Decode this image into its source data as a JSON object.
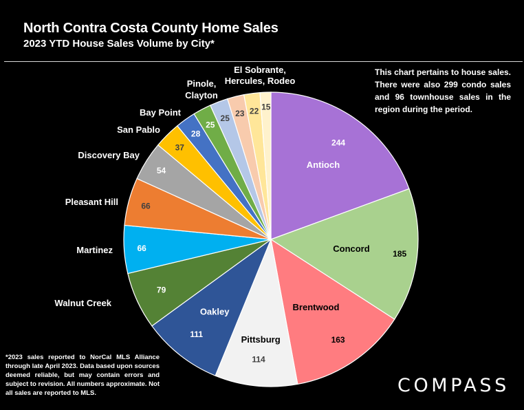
{
  "header": {
    "title": "North Contra Costa County Home Sales",
    "subtitle": "2023 YTD House Sales Volume by City*"
  },
  "note": "This chart pertains to house sales. There were also 299 condo sales and 96 townhouse sales in the region during the period.",
  "footnote": "*2023 sales reported to NorCal MLS Alliance through late April 2023. Data based upon sources deemed reliable, but may contain errors and subject to revision. All numbers approximate. Not all sales are reported to MLS.",
  "logo": "COMPASS",
  "chart_data": {
    "type": "pie",
    "title": "2023 YTD House Sales Volume by City*",
    "start_angle": "12 o'clock",
    "direction": "clockwise",
    "slices": [
      {
        "label": "Antioch",
        "value": 244,
        "color": "#a772d6",
        "label_color": "#ffffff",
        "value_color": "#ffffff"
      },
      {
        "label": "Concord",
        "value": 185,
        "color": "#a9d18e",
        "label_color": "#000000",
        "value_color": "#000000"
      },
      {
        "label": "Brentwood",
        "value": 163,
        "color": "#ff7c80",
        "label_color": "#000000",
        "value_color": "#000000"
      },
      {
        "label": "Pittsburg",
        "value": 114,
        "color": "#f2f2f2",
        "label_color": "#000000",
        "value_color": "#404040"
      },
      {
        "label": "Oakley",
        "value": 111,
        "color": "#2f5597",
        "label_color": "#ffffff",
        "value_color": "#ffffff"
      },
      {
        "label": "Walnut Creek",
        "value": 79,
        "color": "#548235",
        "label_color": "#ffffff",
        "value_color": "#ffffff"
      },
      {
        "label": "Martinez",
        "value": 66,
        "color": "#00b0f0",
        "label_color": "#ffffff",
        "value_color": "#ffffff"
      },
      {
        "label": "Pleasant Hill",
        "value": 66,
        "color": "#ed7d31",
        "label_color": "#ffffff",
        "value_color": "#404040"
      },
      {
        "label": "Discovery Bay",
        "value": 54,
        "color": "#a5a5a5",
        "label_color": "#ffffff",
        "value_color": "#ffffff"
      },
      {
        "label": "San Pablo",
        "value": 37,
        "color": "#ffc000",
        "label_color": "#ffffff",
        "value_color": "#404040"
      },
      {
        "label": "Bay Point",
        "value": 28,
        "color": "#4472c4",
        "label_color": "#ffffff",
        "value_color": "#ffffff"
      },
      {
        "label": "Pinole, Clayton",
        "value": 25,
        "color": "#70ad47",
        "label_color": "#ffffff",
        "value_color": "#ffffff"
      },
      {
        "label": "",
        "value": 25,
        "color": "#b4c7e7",
        "label_color": "#ffffff",
        "value_color": "#404040"
      },
      {
        "label": "El Sobrante, Hercules, Rodeo",
        "value": 23,
        "color": "#f8cbad",
        "label_color": "#ffffff",
        "value_color": "#404040"
      },
      {
        "label": "",
        "value": 22,
        "color": "#ffe699",
        "label_color": "#ffffff",
        "value_color": "#404040"
      },
      {
        "label": "",
        "value": 15,
        "color": "#fff2cc",
        "label_color": "#ffffff",
        "value_color": "#404040"
      }
    ]
  }
}
